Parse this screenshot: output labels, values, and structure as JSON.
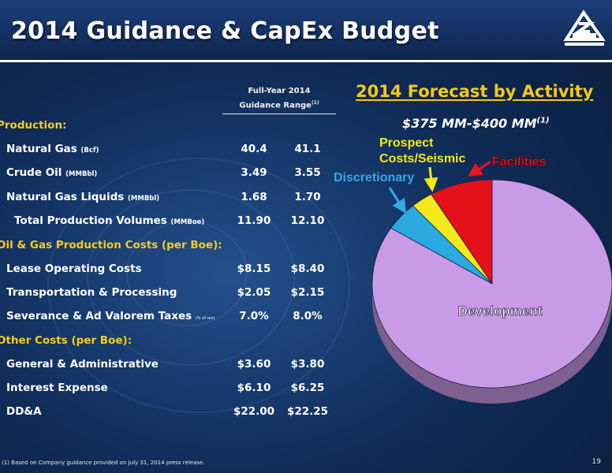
{
  "slide": {
    "title": "2014 Guidance & CapEx Budget",
    "footnote": "(1) Based on Company guidance provided on July 31, 2014 press release.",
    "page_number": "19"
  },
  "table": {
    "header_line1": "Full-Year 2014",
    "header_line2": "Guidance Range",
    "header_note": "(1)",
    "sections": [
      {
        "title": "Production:",
        "rows": [
          {
            "label": "Natural Gas",
            "unit": "(Bcf)",
            "low": "40.4",
            "high": "41.1"
          },
          {
            "label": "Crude Oil",
            "unit": "(MMBbl)",
            "low": "3.49",
            "high": "3.55"
          },
          {
            "label": "Natural Gas Liquids",
            "unit": "(MMBbl)",
            "low": "1.68",
            "high": "1.70"
          },
          {
            "label": "Total Production Volumes",
            "unit": "(MMBoe)",
            "low": "11.90",
            "high": "12.10"
          }
        ]
      },
      {
        "title": "Oil & Gas Production Costs (per Boe):",
        "rows": [
          {
            "label": "Lease Operating Costs",
            "unit": "",
            "low": "$8.15",
            "high": "$8.40"
          },
          {
            "label": "Transportation & Processing",
            "unit": "",
            "low": "$2.05",
            "high": "$2.15"
          },
          {
            "label": "Severance & Ad Valorem Taxes",
            "unit": "(% of rev)",
            "low": "7.0%",
            "high": "8.0%"
          }
        ]
      },
      {
        "title": "Other Costs (per Boe):",
        "rows": [
          {
            "label": "General & Administrative",
            "unit": "",
            "low": "$3.60",
            "high": "$3.80"
          },
          {
            "label": "Interest Expense",
            "unit": "",
            "low": "$6.10",
            "high": "$6.25"
          },
          {
            "label": "DD&A",
            "unit": "",
            "low": "$22.00",
            "high": "$22.25"
          }
        ]
      }
    ]
  },
  "chart_data": {
    "type": "pie",
    "title": "2014 Forecast by Activity",
    "subtitle": "$375 MM-$400 MM",
    "subtitle_note": "(1)",
    "slices": [
      {
        "label": "Development",
        "value": 84,
        "color": "#c99be6"
      },
      {
        "label": "Discretionary",
        "value": 4.5,
        "color": "#2aa8e0"
      },
      {
        "label": "Prospect Costs/Seismic",
        "value": 3.0,
        "color": "#f2e81a"
      },
      {
        "label": "Facilities",
        "value": 8.5,
        "color": "#e4101a"
      }
    ],
    "label_colors": {
      "Development": "#ffffff",
      "Discretionary": "#37a8e6",
      "Prospect Costs/Seismic": "#f5e81a",
      "Facilities": "#e8161e"
    }
  },
  "colors": {
    "background": "#183c70",
    "section_heading": "#f5cd1f",
    "forecast_title": "#f5c81a"
  }
}
